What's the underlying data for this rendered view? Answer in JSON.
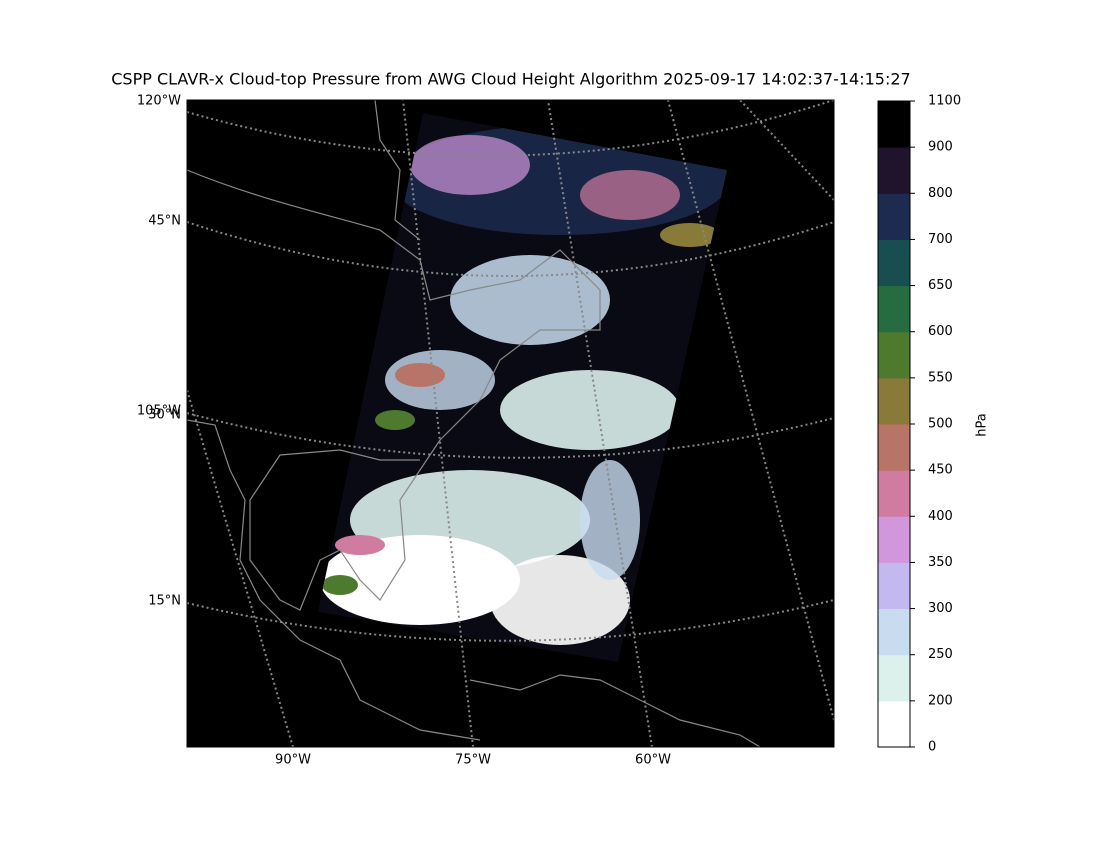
{
  "title": "CSPP CLAVR-x Cloud-top Pressure from AWG Cloud Height Algorithm 2025-09-17 14:02:37-14:15:27",
  "map": {
    "lon_labels_left": [
      "120°W",
      "105°W"
    ],
    "lat_labels": [
      "45°N",
      "30°N",
      "15°N"
    ],
    "lon_labels_bottom": [
      "90°W",
      "75°W",
      "60°W"
    ]
  },
  "colorbar": {
    "label": "hPa",
    "ticks": [
      0,
      200,
      250,
      300,
      350,
      400,
      450,
      500,
      550,
      600,
      650,
      700,
      800,
      900,
      1100
    ],
    "colors": [
      "#ffffff",
      "#dcf0ec",
      "#c8dcf0",
      "#c4b8f0",
      "#d296dc",
      "#d07ca0",
      "#b87466",
      "#8a7a3a",
      "#4e7a30",
      "#276c40",
      "#184e50",
      "#1c2c50",
      "#20142c",
      "#000000"
    ]
  }
}
